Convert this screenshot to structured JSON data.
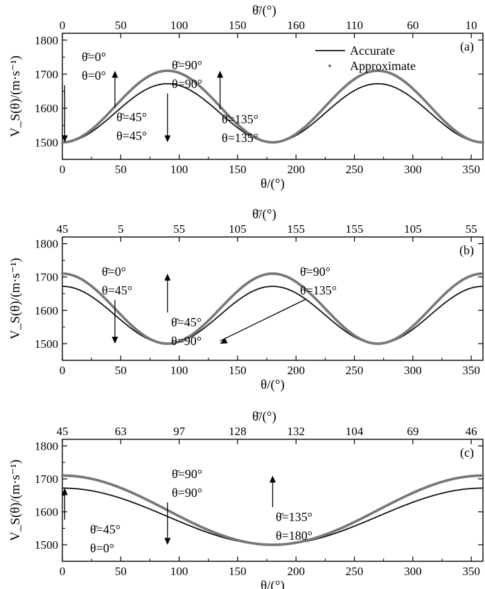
{
  "chart_data": [
    {
      "panel": "(a)",
      "type": "line",
      "xlabel": "θ/(°)",
      "ylabel": "V_S(θ)/(m·s⁻¹)",
      "top_xlabel": "θ̄/(°)",
      "xlim": [
        0,
        360
      ],
      "ylim": [
        1450,
        1820
      ],
      "xticks": [
        0,
        50,
        100,
        150,
        200,
        250,
        300,
        350
      ],
      "yticks": [
        1500,
        1600,
        1700,
        1800
      ],
      "top_tick_labels": [
        "0",
        "50",
        "100",
        "150",
        "160",
        "110",
        "60",
        "10"
      ],
      "curve": {
        "form": "sin2",
        "period": 180,
        "phase": 0
      },
      "series": [
        {
          "name": "Accurate",
          "style": "line",
          "min": 1500,
          "max": 1672
        },
        {
          "name": "Approximate",
          "style": "dots",
          "min": 1500,
          "max": 1710
        }
      ],
      "legend": {
        "position": "top-right",
        "entries": [
          "Accurate",
          "Approximate"
        ]
      },
      "annotations": [
        {
          "line1": "θ̄=0°",
          "line2": "θ=0°",
          "target": [
            2,
            1500
          ]
        },
        {
          "line1": "θ̄=45°",
          "line2": "θ=45°",
          "target": [
            45,
            1710
          ]
        },
        {
          "line1": "θ̄=90°",
          "line2": "θ=90°",
          "target": [
            90,
            1500
          ]
        },
        {
          "line1": "θ̄=135°",
          "line2": "θ=135°",
          "target": [
            135,
            1710
          ]
        }
      ]
    },
    {
      "panel": "(b)",
      "type": "line",
      "xlabel": "θ/(°)",
      "ylabel": "V_S(θ)/(m·s⁻¹)",
      "top_xlabel": "θ̄/(°)",
      "xlim": [
        0,
        360
      ],
      "ylim": [
        1450,
        1820
      ],
      "xticks": [
        0,
        50,
        100,
        150,
        200,
        250,
        300,
        350
      ],
      "yticks": [
        1500,
        1600,
        1700,
        1800
      ],
      "top_tick_labels": [
        "45",
        "5",
        "55",
        "105",
        "155",
        "155",
        "105",
        "55"
      ],
      "curve": {
        "form": "cos2",
        "period": 180,
        "phase": 0
      },
      "series": [
        {
          "name": "Accurate",
          "style": "line",
          "min": 1500,
          "max": 1672
        },
        {
          "name": "Approximate",
          "style": "dots",
          "min": 1500,
          "max": 1710
        }
      ],
      "legend": null,
      "annotations": [
        {
          "line1": "θ̄=0°",
          "line2": "θ=45°",
          "target": [
            45,
            1500
          ]
        },
        {
          "line1": "θ̄=45°",
          "line2": "θ=90°",
          "target": [
            90,
            1710
          ]
        },
        {
          "line1": "θ̄=90°",
          "line2": "θ=135°",
          "target": [
            135,
            1500
          ]
        }
      ]
    },
    {
      "panel": "(c)",
      "type": "line",
      "xlabel": "θ/(°)",
      "ylabel": "V_S(θ)/(m·s⁻¹)",
      "top_xlabel": "θ̄/(°)",
      "xlim": [
        0,
        360
      ],
      "ylim": [
        1450,
        1820
      ],
      "xticks": [
        0,
        50,
        100,
        150,
        200,
        250,
        300,
        350
      ],
      "yticks": [
        1500,
        1600,
        1700,
        1800
      ],
      "top_tick_labels": [
        "45",
        "63",
        "97",
        "128",
        "132",
        "104",
        "69",
        "46"
      ],
      "curve": {
        "form": "cosfull",
        "period": 360,
        "phase": 0
      },
      "series": [
        {
          "name": "Accurate",
          "style": "line",
          "min": 1500,
          "max": 1672
        },
        {
          "name": "Approximate",
          "style": "dots",
          "min": 1500,
          "max": 1710
        }
      ],
      "legend": null,
      "annotations": [
        {
          "line1": "θ̄=45°",
          "line2": "θ=0°",
          "target": [
            2,
            1672
          ]
        },
        {
          "line1": "θ̄=90°",
          "line2": "θ=90°",
          "target": [
            90,
            1500
          ]
        },
        {
          "line1": "θ̄=135°",
          "line2": "θ=180°",
          "target": [
            180,
            1710
          ]
        }
      ]
    }
  ],
  "colors": {
    "accurate": "#111111",
    "approximate": "#777777",
    "axes": "#000000"
  }
}
